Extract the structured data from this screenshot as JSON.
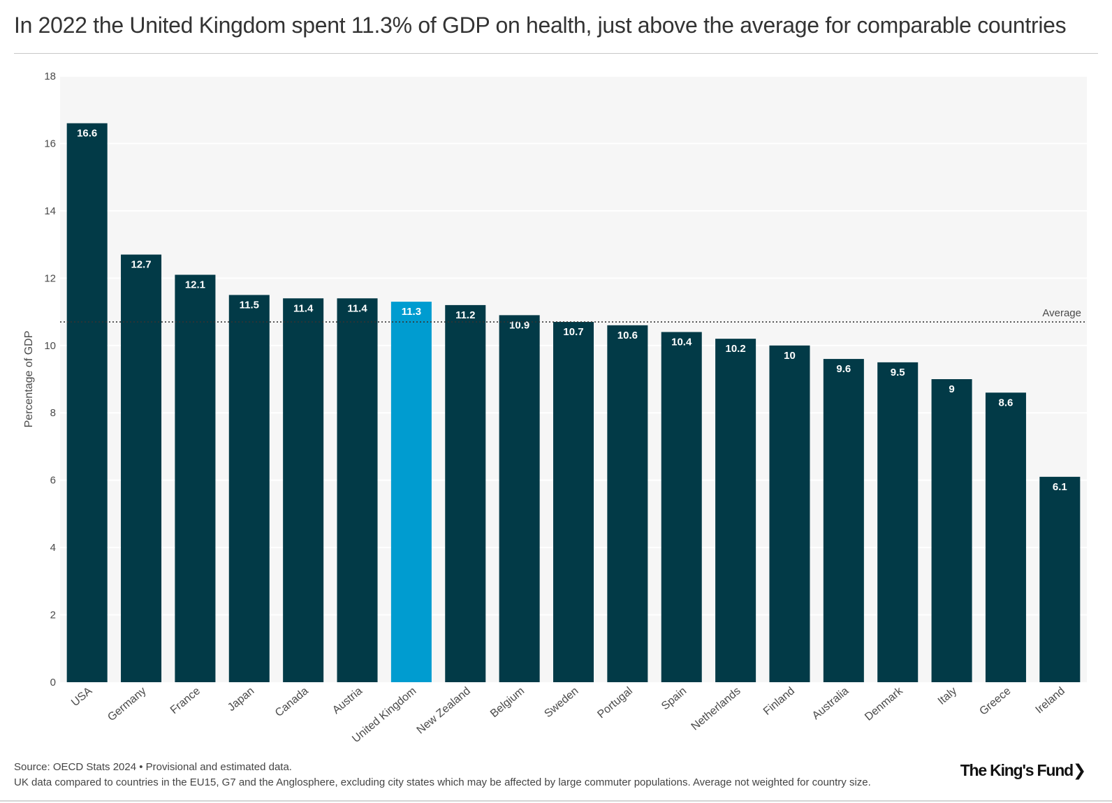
{
  "header": {
    "title": "In 2022 the United Kingdom spent 11.3% of GDP on health, just above the average for comparable countries"
  },
  "chart_data": {
    "type": "bar",
    "title": "In 2022 the United Kingdom spent 11.3% of GDP on health, just above the average for comparable countries",
    "xlabel": "",
    "ylabel": "Percentage of GDP",
    "ylim": [
      0,
      18
    ],
    "yticks": [
      0,
      2,
      4,
      6,
      8,
      10,
      12,
      14,
      16,
      18
    ],
    "grid": true,
    "categories": [
      "USA",
      "Germany",
      "France",
      "Japan",
      "Canada",
      "Austria",
      "United Kingdom",
      "New Zealand",
      "Belgium",
      "Sweden",
      "Portugal",
      "Spain",
      "Netherlands",
      "Finland",
      "Australia",
      "Denmark",
      "Italy",
      "Greece",
      "Ireland"
    ],
    "values": [
      16.6,
      12.7,
      12.1,
      11.5,
      11.4,
      11.4,
      11.3,
      11.2,
      10.9,
      10.7,
      10.6,
      10.4,
      10.2,
      10,
      9.6,
      9.5,
      9,
      8.6,
      6.1
    ],
    "highlight": "United Kingdom",
    "average": {
      "label": "Average",
      "value": 10.7
    }
  },
  "colors": {
    "bar": "#023a47",
    "highlight": "#009cd0",
    "plot_bg": "#f6f6f6",
    "grid": "#ffffff",
    "bar_label": "#ffffff",
    "axis_text": "#4a4a4a"
  },
  "footer": {
    "source": "Source: OECD Stats 2024 • Provisional and estimated data.",
    "note": "UK data compared to countries in the EU15, G7 and the Anglosphere, excluding city states which may be affected by large commuter populations. Average not weighted for country size.",
    "logo": "The King's Fund❯"
  }
}
